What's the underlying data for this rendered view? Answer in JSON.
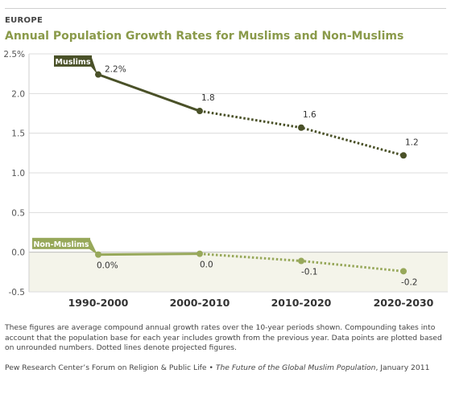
{
  "header": {
    "kicker": "EUROPE",
    "title": "Annual Population Growth Rates for Muslims and Non-Muslims"
  },
  "chart_data": {
    "type": "line",
    "categories": [
      "1990-2000",
      "2000-2010",
      "2010-2020",
      "2020-2030"
    ],
    "y_ticks": [
      "2.5%",
      "2.0",
      "1.5",
      "1.0",
      "0.5",
      "0.0",
      "-0.5"
    ],
    "ylim": [
      -0.5,
      2.5
    ],
    "projected_from_index": 1,
    "series": [
      {
        "name": "Muslims",
        "values": [
          2.24,
          1.78,
          1.57,
          1.22
        ],
        "labels": [
          "2.2%",
          "1.8",
          "1.6",
          "1.2"
        ],
        "color": "#4a5128"
      },
      {
        "name": "Non-Muslims",
        "values": [
          -0.03,
          -0.02,
          -0.11,
          -0.24
        ],
        "labels": [
          "0.0%",
          "0.0",
          "-0.1",
          "-0.2"
        ],
        "color": "#97a85a"
      }
    ],
    "negative_band_color": "#f4f4ea"
  },
  "footer": {
    "note": "These figures are average compound annual growth rates over the 10-year periods shown. Compounding takes into account that the population base for each year includes growth from the previous year. Data points are plotted based on unrounded numbers. Dotted lines denote projected figures.",
    "source_prefix": "Pew Research Center’s Forum on Religion & Public Life • ",
    "source_title": "The Future of the Global Muslim Population",
    "source_suffix": ", January 2011"
  }
}
